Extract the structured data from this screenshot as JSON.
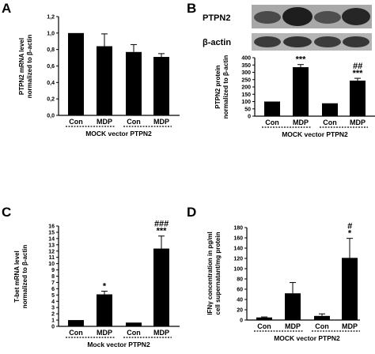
{
  "figure": {
    "panels": [
      "A",
      "B",
      "C",
      "D"
    ],
    "blot_labels": [
      "PTPN2",
      "β-actin"
    ]
  },
  "chart_data": [
    {
      "panel": "A",
      "type": "bar",
      "categories": [
        "Con",
        "MDP",
        "Con",
        "MDP"
      ],
      "groups": [
        "MOCK vector",
        "PTPN2"
      ],
      "values": [
        1.0,
        0.84,
        0.77,
        0.71
      ],
      "errors": [
        0,
        0.15,
        0.09,
        0.04
      ],
      "significance": [
        "",
        "",
        "",
        ""
      ],
      "ylabel": [
        "PTPN2 mRNA level",
        "normalized to β-actin"
      ],
      "xlabel": "MOCK vector PTPN2",
      "ylim": [
        0,
        1.2
      ],
      "yticks": [
        0,
        0.2,
        0.4,
        0.6,
        0.8,
        1.0,
        1.2
      ],
      "ytick_labels": [
        "0,0",
        "0,2",
        "0,4",
        "0,6",
        "0,8",
        "1,0",
        "1,2"
      ]
    },
    {
      "panel": "B",
      "type": "bar",
      "categories": [
        "Con",
        "MDP",
        "Con",
        "MDP"
      ],
      "groups": [
        "MOCK vector",
        "PTPN2"
      ],
      "values": [
        100,
        335,
        88,
        243
      ],
      "errors": [
        0,
        18,
        0,
        16
      ],
      "significance": [
        "",
        "***",
        "",
        "***"
      ],
      "significance2": [
        "",
        "",
        "",
        "##"
      ],
      "ylabel": [
        "PTPN2 protein",
        "normalized to β-actin"
      ],
      "xlabel": "MOCK vector PTPN2",
      "ylim": [
        0,
        400
      ],
      "yticks": [
        0,
        50,
        100,
        150,
        200,
        250,
        300,
        350,
        400
      ],
      "ytick_labels": [
        "0",
        "50",
        "100",
        "150",
        "200",
        "250",
        "300",
        "350",
        "400"
      ]
    },
    {
      "panel": "C",
      "type": "bar",
      "categories": [
        "Con",
        "MDP",
        "Con",
        "MDP"
      ],
      "groups": [
        "Mock vector",
        "PTPN2"
      ],
      "values": [
        1.0,
        5.1,
        0.6,
        12.4
      ],
      "errors": [
        0,
        0.5,
        0,
        2.0
      ],
      "significance": [
        "",
        "*",
        "",
        "***"
      ],
      "significance2": [
        "",
        "",
        "",
        "###"
      ],
      "ylabel": [
        "T-bet mRNA level",
        "normalized to β-actin"
      ],
      "xlabel": "Mock vector PTPN2",
      "ylim": [
        0,
        16
      ],
      "yticks": [
        0,
        1,
        2,
        3,
        4,
        5,
        6,
        7,
        8,
        9,
        10,
        11,
        12,
        13,
        14,
        15,
        16
      ],
      "ytick_labels": [
        "0",
        "1",
        "2",
        "3",
        "4",
        "5",
        "6",
        "7",
        "8",
        "9",
        "10",
        "11",
        "12",
        "13",
        "14",
        "15",
        "16"
      ]
    },
    {
      "panel": "D",
      "type": "bar",
      "categories": [
        "Con",
        "MDP",
        "Con",
        "MDP"
      ],
      "groups": [
        "MOCK vector",
        "PTPN2"
      ],
      "values": [
        5,
        52,
        8,
        121
      ],
      "errors": [
        1,
        21,
        4,
        38
      ],
      "significance": [
        "",
        "",
        "",
        "*"
      ],
      "significance2": [
        "",
        "",
        "",
        "#"
      ],
      "ylabel": [
        "IFNγ concentration in pg/ml",
        "cell supernatant/mg protein"
      ],
      "xlabel": "MOCK vector PTPN2",
      "ylim": [
        0,
        180
      ],
      "yticks": [
        0,
        20,
        40,
        60,
        80,
        100,
        120,
        140,
        160,
        180
      ],
      "ytick_labels": [
        "0",
        "20",
        "40",
        "60",
        "80",
        "100",
        "120",
        "140",
        "160",
        "180"
      ]
    }
  ]
}
